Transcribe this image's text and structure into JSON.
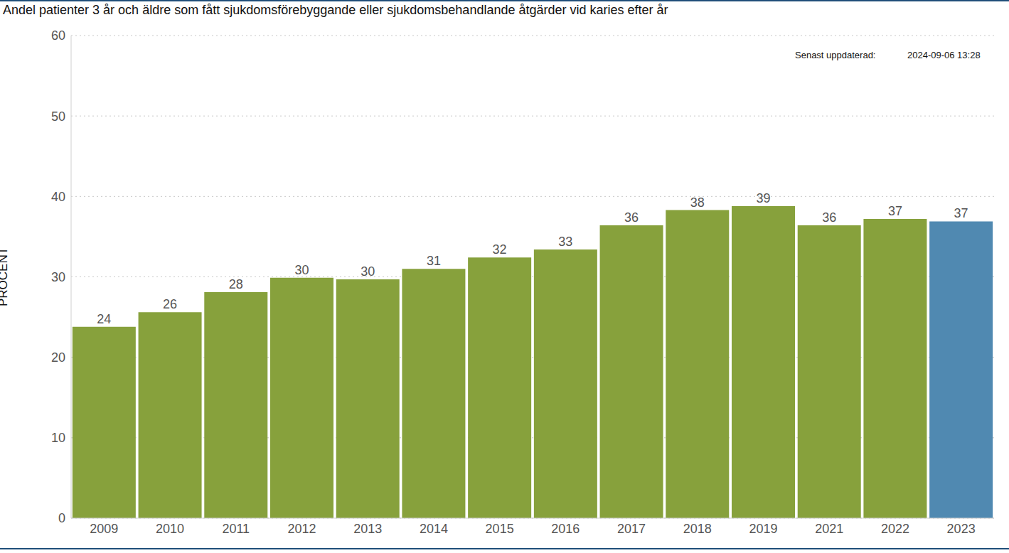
{
  "chart_data": {
    "type": "bar",
    "title": "Andel patienter 3 år och äldre som fått sjukdomsförebyggande eller sjukdomsbehandlande åtgärder vid karies efter år",
    "annotations": [
      "Senast uppdaterad:",
      "2024-09-06 13:28"
    ],
    "y_label": "PROCENT",
    "categories": [
      "2009",
      "2010",
      "2011",
      "2012",
      "2013",
      "2014",
      "2015",
      "2016",
      "2017",
      "2018",
      "2019",
      "2021",
      "2022",
      "2023"
    ],
    "values": [
      23.8,
      25.6,
      28.1,
      29.9,
      29.7,
      31.0,
      32.4,
      33.4,
      36.4,
      38.3,
      38.8,
      36.4,
      37.2,
      36.9
    ],
    "value_labels": [
      "24",
      "26",
      "28",
      "30",
      "30",
      "31",
      "32",
      "33",
      "36",
      "38",
      "39",
      "36",
      "37",
      "37"
    ],
    "colors": [
      "#87a13c",
      "#87a13c",
      "#87a13c",
      "#87a13c",
      "#87a13c",
      "#87a13c",
      "#87a13c",
      "#87a13c",
      "#87a13c",
      "#87a13c",
      "#87a13c",
      "#87a13c",
      "#87a13c",
      "#5089b1"
    ],
    "ylim": [
      0,
      60
    ],
    "yticks": [
      0,
      10,
      20,
      30,
      40,
      50,
      60
    ],
    "grid": true,
    "data_labels": true
  }
}
